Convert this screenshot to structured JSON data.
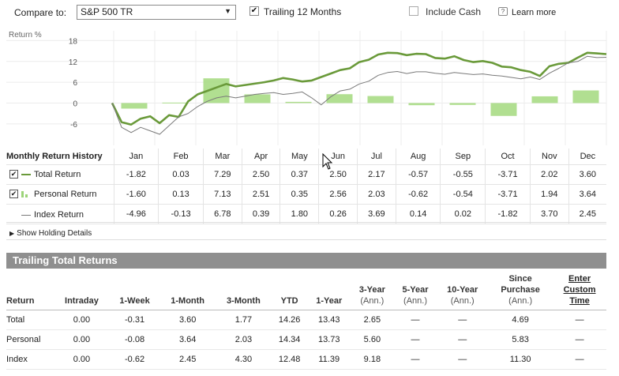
{
  "controls": {
    "compare_label": "Compare to:",
    "compare_value": "S&P 500 TR",
    "trailing_label": "Trailing 12 Months",
    "trailing_checked": true,
    "cash_label": "Include Cash",
    "cash_checked": false,
    "learn_label": "Learn more"
  },
  "chart_data": {
    "type": "line",
    "ylabel": "Return %",
    "yticks": [
      18,
      12,
      6,
      0,
      -6
    ],
    "ylim": [
      -9,
      19
    ],
    "grid": true,
    "months": [
      "Jan",
      "Feb",
      "Mar",
      "Apr",
      "May",
      "Jun",
      "Jul",
      "Aug",
      "Sep",
      "Oct",
      "Nov",
      "Dec"
    ],
    "series": [
      {
        "name": "Total Return",
        "kind": "line",
        "color": "#6a9a3a",
        "values": [
          0,
          -5.5,
          -6.2,
          -4.5,
          -3.8,
          -5.8,
          -3.5,
          -4,
          0.5,
          2.5,
          3.5,
          4.5,
          5.5,
          4.8,
          5.2,
          5.6,
          6,
          6.5,
          7.2,
          6.8,
          6.2,
          6.5,
          7.5,
          8.5,
          9.5,
          10,
          11.8,
          12.5,
          14,
          14.5,
          14.4,
          13.8,
          14.2,
          14.1,
          13,
          12.8,
          13.5,
          12.4,
          11.8,
          12.1,
          11.6,
          10.5,
          10.3,
          9.5,
          9,
          7.8,
          10.6,
          11.3,
          11.6,
          13.1,
          14.5,
          14.3,
          14.1
        ]
      },
      {
        "name": "Personal Return",
        "kind": "bars",
        "color": "#a3d97e",
        "values": [
          -1.6,
          0.13,
          7.13,
          2.51,
          0.35,
          2.56,
          2.03,
          -0.62,
          -0.54,
          -3.71,
          1.94,
          3.64
        ]
      },
      {
        "name": "Index Return",
        "kind": "line",
        "color": "#7a7a7a",
        "values": [
          0,
          -7,
          -8.5,
          -7,
          -8,
          -9,
          -6.5,
          -4,
          -3,
          -1,
          0.5,
          1.5,
          2,
          1.5,
          2,
          2.5,
          2.8,
          3,
          2.5,
          2.8,
          3.2,
          1.5,
          -0.5,
          1.8,
          3.5,
          4,
          5.5,
          6.3,
          8,
          8.8,
          9.1,
          8.5,
          9,
          9,
          8.6,
          8.3,
          8.8,
          8.5,
          8.2,
          8.4,
          8,
          7.8,
          7.4,
          7,
          7.5,
          6.8,
          8.6,
          10,
          11.6,
          12,
          13.5,
          13.1,
          13.2
        ]
      }
    ]
  },
  "monthly": {
    "header": "Monthly Return History",
    "months": [
      "Jan",
      "Feb",
      "Mar",
      "Apr",
      "May",
      "Jun",
      "Jul",
      "Aug",
      "Sep",
      "Oct",
      "Nov",
      "Dec"
    ],
    "rows": [
      {
        "label": "Total Return",
        "checked": true,
        "values": [
          "-1.82",
          "0.03",
          "7.29",
          "2.50",
          "0.37",
          "2.50",
          "2.17",
          "-0.57",
          "-0.55",
          "-3.71",
          "2.02",
          "3.60"
        ]
      },
      {
        "label": "Personal Return",
        "checked": true,
        "values": [
          "-1.60",
          "0.13",
          "7.13",
          "2.51",
          "0.35",
          "2.56",
          "2.03",
          "-0.62",
          "-0.54",
          "-3.71",
          "1.94",
          "3.64"
        ]
      },
      {
        "label": "Index Return",
        "checked": false,
        "values": [
          "-4.96",
          "-0.13",
          "6.78",
          "0.39",
          "1.80",
          "0.26",
          "3.69",
          "0.14",
          "0.02",
          "-1.82",
          "3.70",
          "2.45"
        ]
      }
    ]
  },
  "holding_label": "Show Holding Details",
  "trailing": {
    "title": "Trailing Total Returns",
    "headers": {
      "return": "Return",
      "intraday": "Intraday",
      "week1": "1-Week",
      "month1": "1-Month",
      "month3": "3-Month",
      "ytd": "YTD",
      "year1": "1-Year",
      "year3": "3-Year",
      "year5": "5-Year",
      "year10": "10-Year",
      "since_line1": "Since",
      "since_line2": "Purchase",
      "ann": "(Ann.)",
      "custom_line1": "Enter",
      "custom_line2": "Custom",
      "custom_line3": "Time"
    },
    "rows": [
      {
        "label": "Total",
        "values": [
          "0.00",
          "-0.31",
          "3.60",
          "1.77",
          "14.26",
          "13.43",
          "2.65",
          "—",
          "—",
          "4.69",
          "—"
        ]
      },
      {
        "label": "Personal",
        "values": [
          "0.00",
          "-0.08",
          "3.64",
          "2.03",
          "14.34",
          "13.73",
          "5.60",
          "—",
          "—",
          "5.83",
          "—"
        ]
      },
      {
        "label": "Index",
        "values": [
          "0.00",
          "-0.62",
          "2.45",
          "4.30",
          "12.48",
          "11.39",
          "9.18",
          "—",
          "—",
          "11.30",
          "—"
        ]
      }
    ]
  }
}
